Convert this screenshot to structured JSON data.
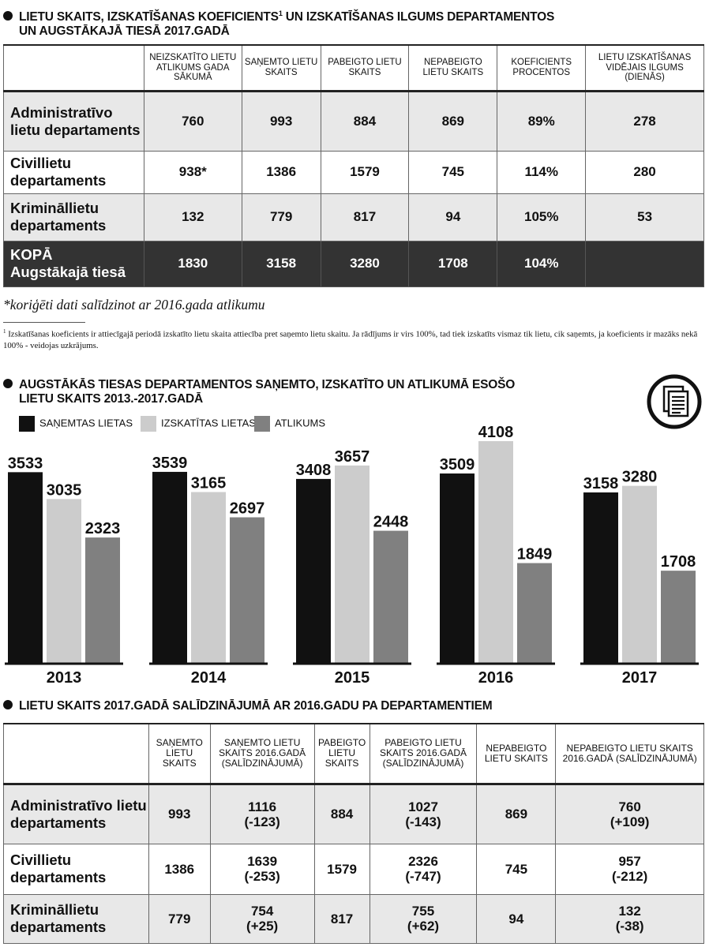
{
  "section1": {
    "title_line1": "LIETU SKAITS, IZSKATĪŠANAS KOEFICIENTS",
    "title_sup": "1",
    "title_line1_rest": " UN IZSKATĪŠANAS ILGUMS DEPARTAMENTOS",
    "title_line2": "UN AUGSTĀKAJĀ TIESĀ 2017.GADĀ",
    "headers": [
      "NEIZSKATĪTO LIETU ATLIKUMS GADA SĀKUMĀ",
      "SAŅEMTO LIETU SKAITS",
      "PABEIGTO LIETU SKAITS",
      "NEPABEIGTO LIETU SKAITS",
      "KOEFICIENTS PROCENTOS",
      "LIETU IZSKATĪŠANAS VIDĒJAIS ILGUMS (DIENĀS)"
    ],
    "rows": [
      {
        "label": "Administratīvo lietu departaments",
        "values": [
          "760",
          "993",
          "884",
          "869",
          "89%",
          "278"
        ]
      },
      {
        "label": "Civillietu departaments",
        "values": [
          "938*",
          "1386",
          "1579",
          "745",
          "114%",
          "280"
        ]
      },
      {
        "label": "Krimināllietu departaments",
        "values": [
          "132",
          "779",
          "817",
          "94",
          "105%",
          "53"
        ]
      }
    ],
    "total": {
      "label_line1": "KOPĀ",
      "label_line2": "Augstākajā tiesā",
      "values": [
        "1830",
        "3158",
        "3280",
        "1708",
        "104%",
        ""
      ]
    },
    "note": "*koriģēti dati salīdzinot ar 2016.gada atlikumu",
    "footnote_sup": "1",
    "footnote": " Izskatīšanas koeficients ir attiecīgajā periodā izskatīto lietu skaita attiecība pret saņemto lietu skaitu. Ja rādījums ir virs 100%, tad tiek izskatīts vismaz tik lietu, cik saņemts, ja koeficients ir mazāks nekā 100% - veidojas uzkrājums."
  },
  "section2": {
    "title_line1": "AUGSTĀKĀS TIESAS DEPARTAMENTOS SAŅEMTO, IZSKATĪTO UN ATLIKUMĀ ESOŠO",
    "title_line2": "LIETU SKAITS 2013.-2017.GADĀ",
    "icon": "document-stack-icon"
  },
  "chart_data": {
    "type": "bar",
    "categories": [
      "2013",
      "2014",
      "2015",
      "2016",
      "2017"
    ],
    "series": [
      {
        "name": "SAŅEMTAS LIETAS",
        "color": "#111111",
        "values": [
          3533,
          3539,
          3408,
          3509,
          3158
        ]
      },
      {
        "name": "IZSKATĪTAS LIETAS",
        "color": "#cccccc",
        "values": [
          3035,
          3165,
          3657,
          4108,
          3280
        ]
      },
      {
        "name": "ATLIKUMS",
        "color": "#808080",
        "values": [
          2323,
          2697,
          2448,
          1849,
          1708
        ]
      }
    ],
    "title": "AUGSTĀKĀS TIESAS DEPARTAMENTOS SAŅEMTO, IZSKATĪTO UN ATLIKUMĀ ESOŠO LIETU SKAITS 2013.-2017.GADĀ",
    "xlabel": "",
    "ylabel": "",
    "grid": false,
    "legend": "top-left"
  },
  "section3": {
    "title": "LIETU SKAITS 2017.GADĀ SALĪDZINĀJUMĀ AR 2016.GADU PA DEPARTAMENTIEM",
    "headers": [
      "SAŅEMTO LIETU SKAITS",
      "SAŅEMTO LIETU SKAITS 2016.GADĀ (SALĪDZINĀJUMĀ)",
      "PABEIGTO LIETU SKAITS",
      "PABEIGTO LIETU SKAITS 2016.GADĀ (SALĪDZINĀJUMĀ)",
      "NEPABEIGTO LIETU SKAITS",
      "NEPABEIGTO LIETU SKAITS 2016.GADĀ (SALĪDZINĀJUMĀ)"
    ],
    "rows": [
      {
        "label": "Administratīvo lietu departaments",
        "values": [
          "993",
          "1116",
          "884",
          "1027",
          "869",
          "760"
        ],
        "diffs": [
          "",
          "(-123)",
          "",
          "(-143)",
          "",
          "(+109)"
        ]
      },
      {
        "label": "Civillietu departaments",
        "values": [
          "1386",
          "1639",
          "1579",
          "2326",
          "745",
          "957"
        ],
        "diffs": [
          "",
          "(-253)",
          "",
          "(-747)",
          "",
          "(-212)"
        ]
      },
      {
        "label": "Krimināllietu departaments",
        "values": [
          "779",
          "754",
          "817",
          "755",
          "94",
          "132"
        ],
        "diffs": [
          "",
          "(+25)",
          "",
          "(+62)",
          "",
          "(-38)"
        ]
      }
    ]
  }
}
